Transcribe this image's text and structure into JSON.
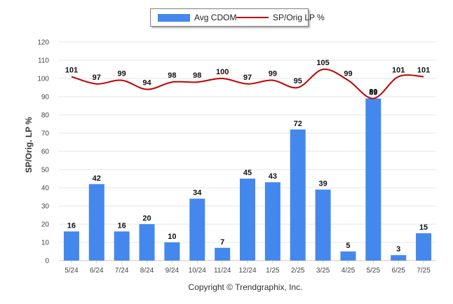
{
  "chart_data": {
    "type": "bar",
    "categories": [
      "5/24",
      "6/24",
      "7/24",
      "8/24",
      "9/24",
      "10/24",
      "11/24",
      "12/24",
      "1/25",
      "2/25",
      "3/25",
      "4/25",
      "5/25",
      "6/25",
      "7/25"
    ],
    "series": [
      {
        "name": "Avg CDOM",
        "type": "bar",
        "values": [
          16,
          42,
          16,
          20,
          10,
          34,
          7,
          45,
          43,
          72,
          39,
          5,
          89,
          3,
          15
        ]
      },
      {
        "name": "SP/Orig LP %",
        "type": "line",
        "values": [
          101,
          97,
          99,
          94,
          98,
          98,
          100,
          97,
          99,
          95,
          105,
          99,
          89,
          101,
          101
        ]
      }
    ],
    "ylabel": "SP/Orig. LP %",
    "ylim": [
      0,
      120
    ],
    "yticks": [
      0,
      10,
      20,
      30,
      40,
      50,
      60,
      70,
      80,
      90,
      100,
      110,
      120
    ],
    "grid": true,
    "legend_position": "top"
  },
  "colors": {
    "bar": "#4488ee",
    "line": "#c00000",
    "grid": "#e6e6e6"
  },
  "credit": "Copyright © Trendgraphix, Inc."
}
